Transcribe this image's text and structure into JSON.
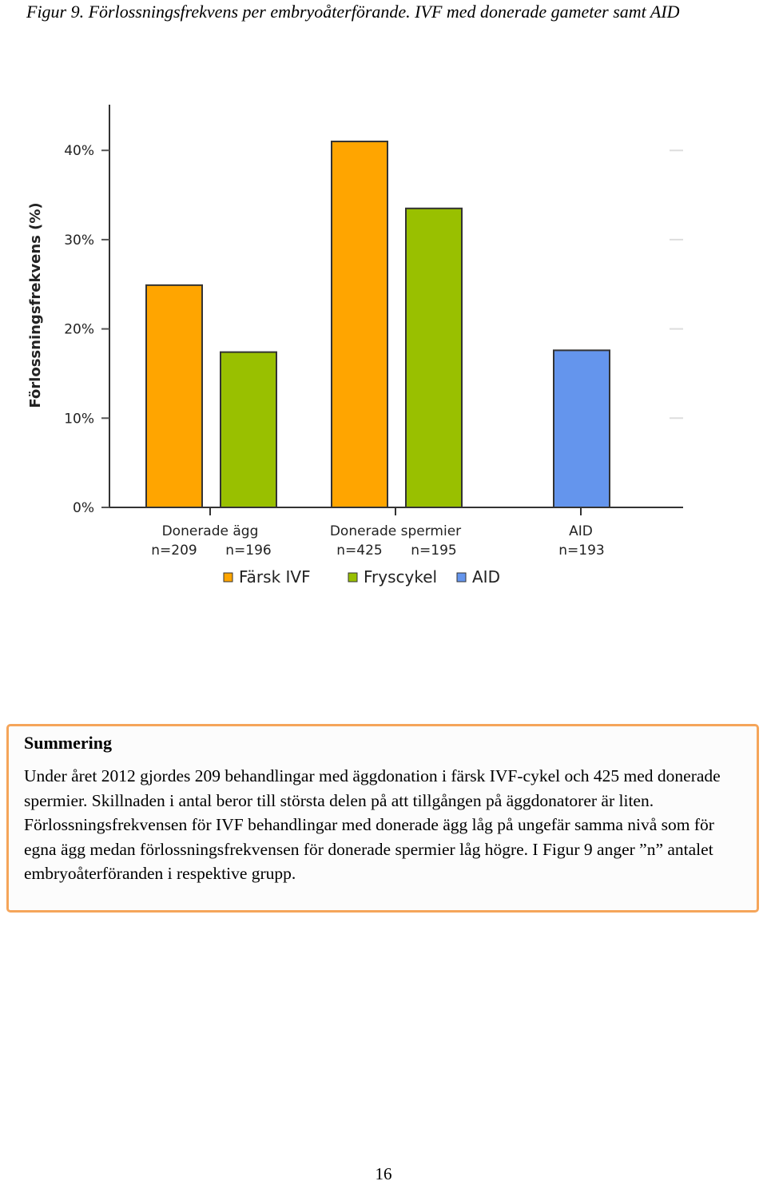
{
  "caption": "Figur 9.  Förlossningsfrekvens per embryoåterförande. IVF med donerade gameter samt AID",
  "chart_data": {
    "type": "bar",
    "ylabel": "Förlossningsfrekvens (%)",
    "ylim": [
      0,
      45
    ],
    "yticks": [
      0,
      10,
      20,
      30,
      40
    ],
    "ytick_labels": [
      "0%",
      "10%",
      "20%",
      "30%",
      "40%"
    ],
    "grid": false,
    "legend_position": "bottom",
    "legend": [
      {
        "name": "Färsk IVF",
        "color": "#FFA500"
      },
      {
        "name": "Fryscykel",
        "color": "#99C000"
      },
      {
        "name": "AID",
        "color": "#6495ED"
      }
    ],
    "groups": [
      {
        "label": "Donerade ägg",
        "bars": [
          {
            "series": "Färsk IVF",
            "value": 24.9,
            "n_label": "n=209"
          },
          {
            "series": "Fryscykel",
            "value": 17.4,
            "n_label": "n=196"
          }
        ]
      },
      {
        "label": "Donerade spermier",
        "bars": [
          {
            "series": "Färsk IVF",
            "value": 41.0,
            "n_label": "n=425"
          },
          {
            "series": "Fryscykel",
            "value": 33.5,
            "n_label": "n=195"
          }
        ]
      },
      {
        "label": "AID",
        "bars": [
          {
            "series": "AID",
            "value": 17.6,
            "n_label": "n=193"
          }
        ]
      }
    ]
  },
  "summary": {
    "title": "Summering",
    "text": "Under året 2012 gjordes 209 behandlingar med äggdonation i färsk IVF-cykel och 425 med donerade spermier. Skillnaden i antal beror till största delen på att tillgången på äggdonatorer är liten.  Förlossningsfrekvensen för IVF behandlingar med donerade ägg låg på ungefär samma nivå som för egna ägg medan förlossningsfrekvensen för donerade spermier låg högre. I Figur 9 anger ”n” antalet embryoåterföranden i respektive grupp."
  },
  "page_number": "16"
}
